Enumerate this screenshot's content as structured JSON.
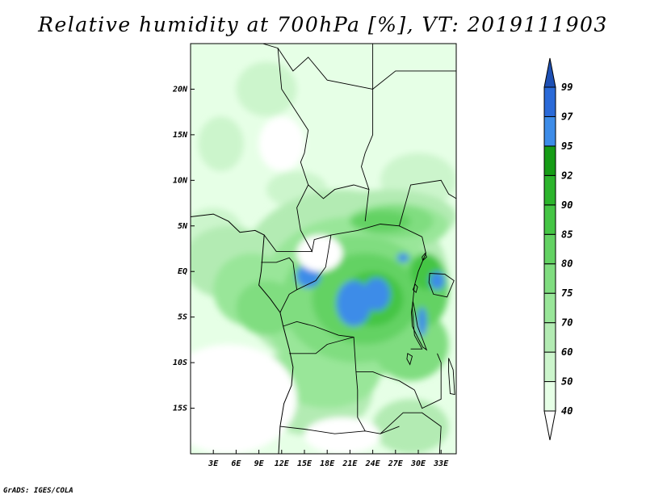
{
  "title": "Relative humidity at 700hPa [%], VT: 2019111903",
  "credit": "GrADS: IGES/COLA",
  "map": {
    "variable": "Relative humidity at 700hPa",
    "units": "%",
    "valid_time": "2019111903",
    "lon_range": [
      0,
      35
    ],
    "lat_range": [
      -20,
      25
    ],
    "lat_ticks": [
      {
        "label": "20N",
        "lat": 20
      },
      {
        "label": "15N",
        "lat": 15
      },
      {
        "label": "10N",
        "lat": 10
      },
      {
        "label": "5N",
        "lat": 5
      },
      {
        "label": "EQ",
        "lat": 0
      },
      {
        "label": "5S",
        "lat": -5
      },
      {
        "label": "10S",
        "lat": -10
      },
      {
        "label": "15S",
        "lat": -15
      }
    ],
    "lon_ticks": [
      {
        "label": "3E",
        "lon": 3
      },
      {
        "label": "6E",
        "lon": 6
      },
      {
        "label": "9E",
        "lon": 9
      },
      {
        "label": "12E",
        "lon": 12
      },
      {
        "label": "15E",
        "lon": 15
      },
      {
        "label": "18E",
        "lon": 18
      },
      {
        "label": "21E",
        "lon": 21
      },
      {
        "label": "24E",
        "lon": 24
      },
      {
        "label": "27E",
        "lon": 27
      },
      {
        "label": "30E",
        "lon": 30
      },
      {
        "label": "33E",
        "lon": 33
      }
    ]
  },
  "colorbar": {
    "levels": [
      "40",
      "50",
      "60",
      "70",
      "75",
      "80",
      "85",
      "90",
      "92",
      "95",
      "97",
      "99"
    ],
    "colors": [
      "#ffffff",
      "#e6ffe6",
      "#ccf5cc",
      "#b3ebb3",
      "#99e699",
      "#80dd80",
      "#63d263",
      "#45c545",
      "#2cb42c",
      "#169c16",
      "#3d8ce8",
      "#2a6ad8",
      "#1e50b4"
    ]
  },
  "field": {
    "colors": {
      "bg": "#e6ffe6",
      "l60": "#ccf5cc",
      "l70": "#b3ebb3",
      "l75": "#99e699",
      "l80": "#80dd80",
      "l85": "#63d263",
      "l90": "#45c545",
      "blue": "#3d8ce8"
    },
    "patches": [
      {
        "c": "bg",
        "lon": 12,
        "lat": 17,
        "rx": 8,
        "ry": 5
      },
      {
        "c": "bg",
        "lon": 5,
        "lat": 12,
        "rx": 5,
        "ry": 5
      },
      {
        "c": "bg",
        "lon": 26,
        "lat": 14,
        "rx": 8,
        "ry": 6
      },
      {
        "c": "l60",
        "lon": 10,
        "lat": 20,
        "rx": 4,
        "ry": 3
      },
      {
        "c": "l60",
        "lon": 4,
        "lat": 14,
        "rx": 3,
        "ry": 3
      },
      {
        "c": "l60",
        "lon": 3,
        "lat": 4,
        "rx": 4,
        "ry": 3
      },
      {
        "c": "l60",
        "lon": 14,
        "lat": 9,
        "rx": 4,
        "ry": 2
      },
      {
        "c": "l60",
        "lon": 30,
        "lat": 10,
        "rx": 5,
        "ry": 3
      },
      {
        "c": "l70",
        "lon": 5,
        "lat": 1,
        "rx": 6,
        "ry": 4
      },
      {
        "c": "l70",
        "lon": 20,
        "lat": -1,
        "rx": 14,
        "ry": 10
      },
      {
        "c": "l70",
        "lon": 26,
        "lat": 6,
        "rx": 9,
        "ry": 3
      },
      {
        "c": "l70",
        "lon": 16,
        "lat": -13,
        "rx": 8,
        "ry": 5
      },
      {
        "c": "l70",
        "lon": 29,
        "lat": -17,
        "rx": 5,
        "ry": 3
      },
      {
        "c": "l75",
        "lon": 8,
        "lat": -2,
        "rx": 5,
        "ry": 4
      },
      {
        "c": "l75",
        "lon": 21,
        "lat": -3,
        "rx": 12,
        "ry": 9
      },
      {
        "c": "l75",
        "lon": 27,
        "lat": 5,
        "rx": 7,
        "ry": 2.5
      },
      {
        "c": "l75",
        "lon": 18,
        "lat": -11,
        "rx": 7,
        "ry": 4
      },
      {
        "c": "l80",
        "lon": 22,
        "lat": -3,
        "rx": 10,
        "ry": 7
      },
      {
        "c": "l80",
        "lon": 10,
        "lat": -4,
        "rx": 4,
        "ry": 3
      },
      {
        "c": "l80",
        "lon": 29,
        "lat": -8,
        "rx": 5,
        "ry": 4
      },
      {
        "c": "l80",
        "lon": 27,
        "lat": 5.5,
        "rx": 5,
        "ry": 1.8
      },
      {
        "c": "l85",
        "lon": 23,
        "lat": -3,
        "rx": 7,
        "ry": 5
      },
      {
        "c": "l85",
        "lon": 31,
        "lat": -2,
        "rx": 3,
        "ry": 4
      },
      {
        "c": "l85",
        "lon": 25,
        "lat": 5.5,
        "rx": 4,
        "ry": 1.2
      },
      {
        "c": "l90",
        "lon": 24,
        "lat": -3,
        "rx": 4,
        "ry": 3
      },
      {
        "c": "l90",
        "lon": 31,
        "lat": 0,
        "rx": 2,
        "ry": 2
      },
      {
        "c": "blue",
        "lon": 15.5,
        "lat": -0.5,
        "rx": 1.6,
        "ry": 1.3
      },
      {
        "c": "blue",
        "lon": 21.5,
        "lat": -3.5,
        "rx": 2.3,
        "ry": 2.5
      },
      {
        "c": "blue",
        "lon": 24.5,
        "lat": -2.5,
        "rx": 1.8,
        "ry": 1.8
      },
      {
        "c": "blue",
        "lon": 28,
        "lat": 1.5,
        "rx": 0.8,
        "ry": 0.5
      },
      {
        "c": "blue",
        "lon": 30.5,
        "lat": -5.5,
        "rx": 0.6,
        "ry": 1.6
      },
      {
        "c": "blue",
        "lon": 32.5,
        "lat": -1,
        "rx": 1,
        "ry": 1
      }
    ],
    "blank": [
      {
        "lon": 5,
        "lat": -14,
        "rx": 9,
        "ry": 6
      },
      {
        "lon": 17,
        "lat": 2,
        "rx": 3,
        "ry": 2
      },
      {
        "lon": 20,
        "lat": -18,
        "rx": 5,
        "ry": 2
      },
      {
        "lon": 12,
        "lat": 14,
        "rx": 3,
        "ry": 3
      }
    ]
  },
  "coastline": [
    [
      0,
      6
    ],
    [
      3,
      6.3
    ],
    [
      5,
      5.5
    ],
    [
      6.5,
      4.3
    ],
    [
      8.5,
      4.5
    ],
    [
      9.7,
      4
    ],
    [
      9.5,
      2
    ],
    [
      9.3,
      0
    ],
    [
      9,
      -1.5
    ],
    [
      10.5,
      -3
    ],
    [
      11.8,
      -4.5
    ],
    [
      12.2,
      -6
    ],
    [
      13,
      -8.5
    ],
    [
      13.5,
      -10.5
    ],
    [
      13.3,
      -12.5
    ],
    [
      12.3,
      -14.5
    ],
    [
      11.8,
      -17
    ],
    [
      11.6,
      -20
    ]
  ],
  "borders": [
    [
      [
        9.5,
        25
      ],
      [
        11.5,
        24.5
      ],
      [
        13.5,
        22
      ],
      [
        15.5,
        23.5
      ],
      [
        18,
        21
      ],
      [
        24,
        20
      ],
      [
        24,
        25
      ]
    ],
    [
      [
        24,
        20
      ],
      [
        24,
        15
      ],
      [
        23,
        13
      ],
      [
        22.5,
        11.5
      ],
      [
        23.5,
        9
      ]
    ],
    [
      [
        11.5,
        24.5
      ],
      [
        12,
        20
      ],
      [
        15.5,
        15.5
      ],
      [
        15,
        13
      ],
      [
        14.5,
        12
      ],
      [
        15.5,
        9.5
      ],
      [
        14,
        7
      ],
      [
        14.5,
        4.5
      ],
      [
        16,
        2.2
      ],
      [
        16.3,
        3.5
      ],
      [
        18.5,
        4
      ],
      [
        22,
        4.5
      ],
      [
        25,
        5.2
      ],
      [
        27.5,
        5
      ],
      [
        30.5,
        3.8
      ]
    ],
    [
      [
        15.5,
        9.5
      ],
      [
        17.5,
        8
      ],
      [
        19,
        9
      ],
      [
        21.5,
        9.5
      ],
      [
        23.5,
        9
      ],
      [
        23,
        5.5
      ]
    ],
    [
      [
        24,
        20
      ],
      [
        27,
        22
      ],
      [
        35,
        22
      ]
    ],
    [
      [
        27.5,
        5
      ],
      [
        29,
        9.5
      ],
      [
        33,
        10
      ],
      [
        34,
        8.5
      ],
      [
        35,
        8
      ]
    ],
    [
      [
        9.7,
        4
      ],
      [
        11.3,
        2.2
      ],
      [
        16,
        2.2
      ]
    ],
    [
      [
        9.3,
        1
      ],
      [
        11.3,
        1
      ],
      [
        13,
        1.5
      ],
      [
        13.5,
        1
      ],
      [
        14,
        -2
      ],
      [
        13,
        -2.5
      ],
      [
        11.8,
        -4.5
      ]
    ],
    [
      [
        14,
        -2
      ],
      [
        16.5,
        -1
      ],
      [
        17.8,
        0.5
      ],
      [
        18.5,
        4
      ]
    ],
    [
      [
        12.2,
        -6
      ],
      [
        14,
        -5.5
      ],
      [
        16.3,
        -6
      ],
      [
        19.5,
        -7
      ],
      [
        21.5,
        -7.2
      ],
      [
        21.8,
        -11
      ],
      [
        24,
        -11
      ],
      [
        25.5,
        -11.5
      ],
      [
        27.5,
        -12
      ],
      [
        29.5,
        -13
      ]
    ],
    [
      [
        30.5,
        3.8
      ],
      [
        31,
        2
      ],
      [
        30,
        0
      ],
      [
        29.5,
        -1.5
      ],
      [
        29.2,
        -4
      ],
      [
        29.5,
        -7
      ],
      [
        30.5,
        -8.5
      ],
      [
        29,
        -8.5
      ]
    ],
    [
      [
        13,
        -9
      ],
      [
        16.5,
        -9
      ],
      [
        18,
        -8
      ],
      [
        21.5,
        -7.2
      ]
    ],
    [
      [
        11.8,
        -17
      ],
      [
        15,
        -17.3
      ],
      [
        19,
        -17.8
      ],
      [
        23,
        -17.5
      ],
      [
        25,
        -17.8
      ],
      [
        27.5,
        -17
      ]
    ],
    [
      [
        21.8,
        -11
      ],
      [
        22,
        -13
      ],
      [
        22,
        -16
      ],
      [
        23,
        -17.5
      ]
    ],
    [
      [
        29.5,
        -13
      ],
      [
        30.5,
        -15
      ],
      [
        33,
        -14
      ],
      [
        33,
        -10
      ],
      [
        32.5,
        -9
      ]
    ],
    [
      [
        25,
        -17.8
      ],
      [
        28,
        -15.5
      ],
      [
        30.5,
        -15.5
      ],
      [
        33,
        -17
      ],
      [
        32.8,
        -20
      ]
    ]
  ],
  "lakes": [
    [
      [
        29.3,
        -3.3
      ],
      [
        29.6,
        -4.5
      ],
      [
        29.9,
        -6
      ],
      [
        30.6,
        -7.5
      ],
      [
        31.1,
        -8.6
      ],
      [
        30.6,
        -8.3
      ],
      [
        29.9,
        -7.2
      ],
      [
        29.2,
        -6
      ],
      [
        29.1,
        -4.5
      ],
      [
        29.3,
        -3.3
      ]
    ],
    [
      [
        31.5,
        -0.2
      ],
      [
        33.5,
        -0.3
      ],
      [
        34.7,
        -1
      ],
      [
        33.8,
        -2.8
      ],
      [
        32,
        -2.5
      ],
      [
        31.4,
        -1.2
      ],
      [
        31.5,
        -0.2
      ]
    ],
    [
      [
        28.6,
        -9
      ],
      [
        29.2,
        -9.3
      ],
      [
        28.9,
        -10.2
      ],
      [
        28.5,
        -9.6
      ],
      [
        28.6,
        -9
      ]
    ],
    [
      [
        34,
        -9.5
      ],
      [
        34.6,
        -10.8
      ],
      [
        34.8,
        -13.5
      ],
      [
        34.2,
        -13.4
      ],
      [
        34,
        -11
      ],
      [
        34,
        -9.5
      ]
    ],
    [
      [
        29.6,
        -1.4
      ],
      [
        29.9,
        -1.7
      ],
      [
        29.7,
        -2.3
      ],
      [
        29.3,
        -2
      ],
      [
        29.6,
        -1.4
      ]
    ],
    [
      [
        30.6,
        1.2
      ],
      [
        31.1,
        1.6
      ],
      [
        30.9,
        2.0
      ],
      [
        30.5,
        1.6
      ],
      [
        30.6,
        1.2
      ]
    ]
  ]
}
